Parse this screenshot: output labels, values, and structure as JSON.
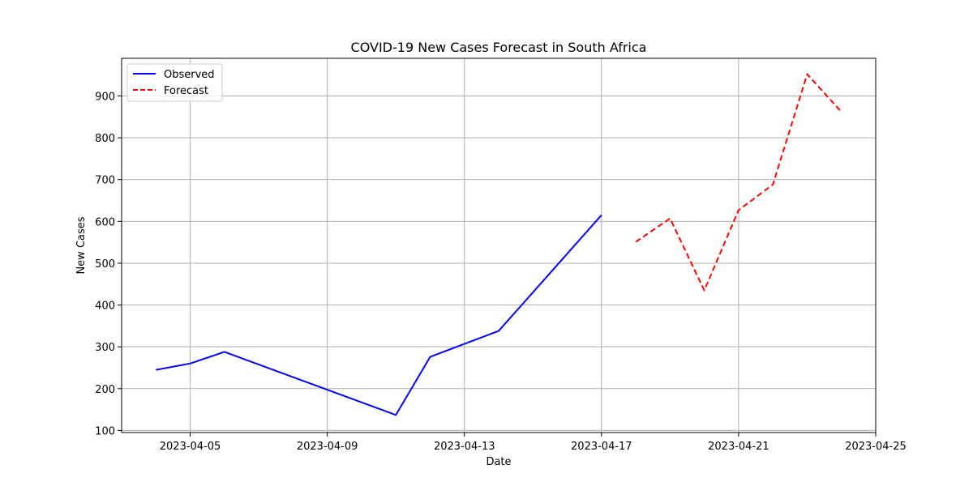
{
  "chart_data": {
    "type": "line",
    "title": "COVID-19 New Cases Forecast in South Africa",
    "xlabel": "Date",
    "ylabel": "New Cases",
    "xlim": [
      "2023-04-03",
      "2023-04-25"
    ],
    "ylim": [
      95,
      990
    ],
    "x_ticks": [
      "2023-04-05",
      "2023-04-09",
      "2023-04-13",
      "2023-04-17",
      "2023-04-21",
      "2023-04-25"
    ],
    "y_ticks": [
      100,
      200,
      300,
      400,
      500,
      600,
      700,
      800,
      900
    ],
    "grid": true,
    "legend": {
      "placement": "top-left"
    },
    "series": [
      {
        "name": "Observed",
        "color": "#0000ff",
        "style": "solid",
        "x": [
          "2023-04-04",
          "2023-04-05",
          "2023-04-06",
          "2023-04-11",
          "2023-04-12",
          "2023-04-14",
          "2023-04-17"
        ],
        "values": [
          245,
          260,
          288,
          137,
          276,
          338,
          615
        ]
      },
      {
        "name": "Forecast",
        "color": "#ff0000",
        "style": "dashed",
        "x": [
          "2023-04-18",
          "2023-04-19",
          "2023-04-20",
          "2023-04-21",
          "2023-04-22",
          "2023-04-23",
          "2023-04-24"
        ],
        "values": [
          551,
          607,
          435,
          627,
          688,
          952,
          862
        ]
      }
    ]
  }
}
